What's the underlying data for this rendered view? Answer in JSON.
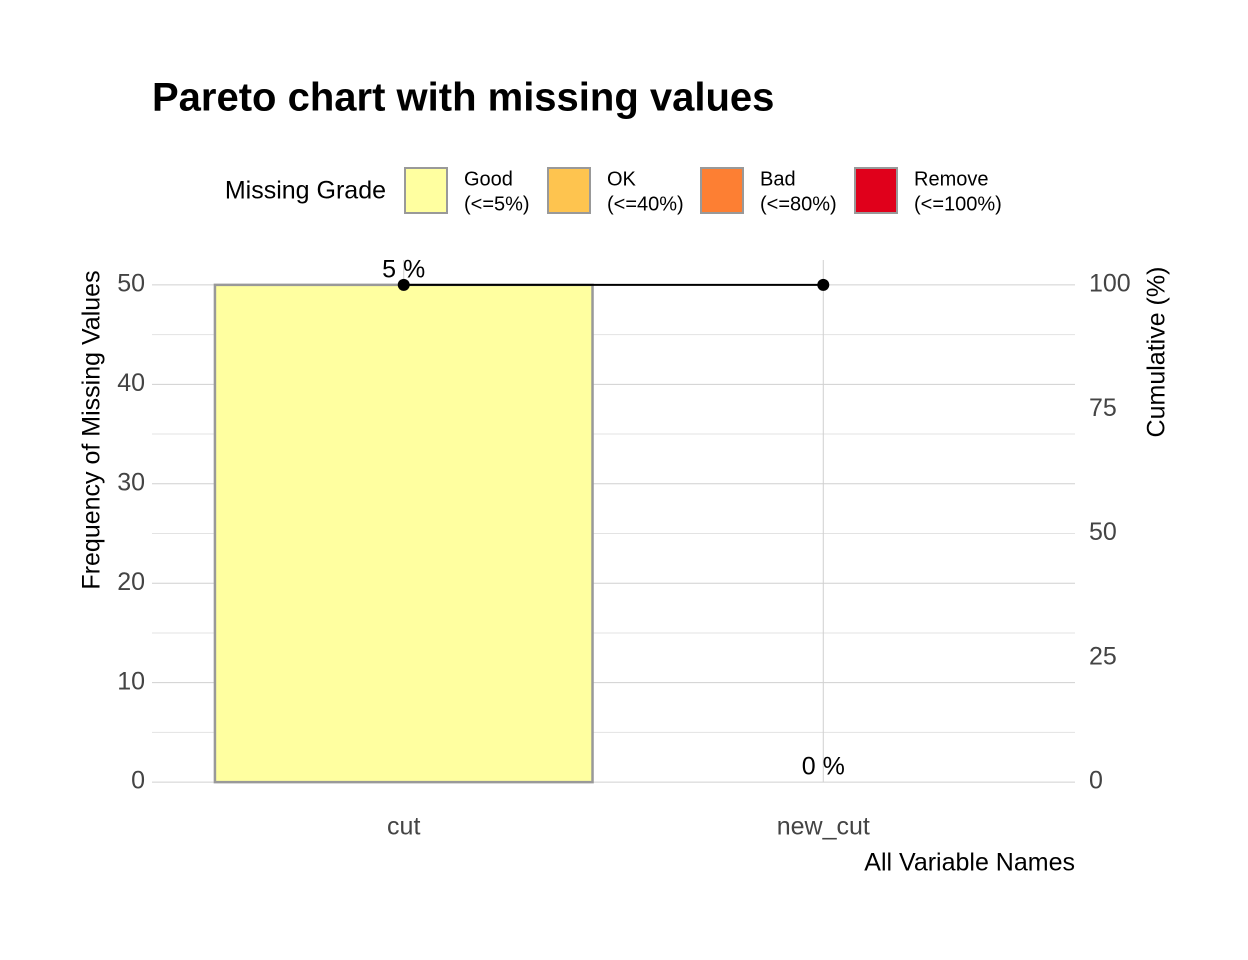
{
  "chart_data": {
    "type": "pareto",
    "title": "Pareto chart with missing values",
    "legend_title": "Missing Grade",
    "legend_items": [
      {
        "label": "Good",
        "range": "(<=5%)",
        "color": "#FFFFA0"
      },
      {
        "label": "OK",
        "range": "(<=40%)",
        "color": "#FEC44F"
      },
      {
        "label": "Bad",
        "range": "(<=80%)",
        "color": "#FD7F33"
      },
      {
        "label": "Remove",
        "range": "(<=100%)",
        "color": "#E0001B"
      }
    ],
    "categories": [
      "cut",
      "new_cut"
    ],
    "series": [
      {
        "name": "Frequency",
        "values": [
          50,
          0
        ],
        "bar_colors": [
          "#FFFFA0",
          "#FFFFA0"
        ]
      },
      {
        "name": "Cumulative",
        "values": [
          100,
          100
        ],
        "color": "#000000",
        "axis": "y2"
      }
    ],
    "annotations": [
      "5 %",
      "0 %"
    ],
    "xlabel": "All Variable Names",
    "ylabel": "Frequency of Missing Values",
    "y2label": "Cumulative (%)",
    "ylim": [
      -2.5,
      52.5
    ],
    "yticks": [
      0,
      10,
      20,
      30,
      40,
      50
    ],
    "y2lim": [
      -5,
      105
    ],
    "y2ticks": [
      0,
      25,
      50,
      75,
      100
    ],
    "grid": true
  }
}
